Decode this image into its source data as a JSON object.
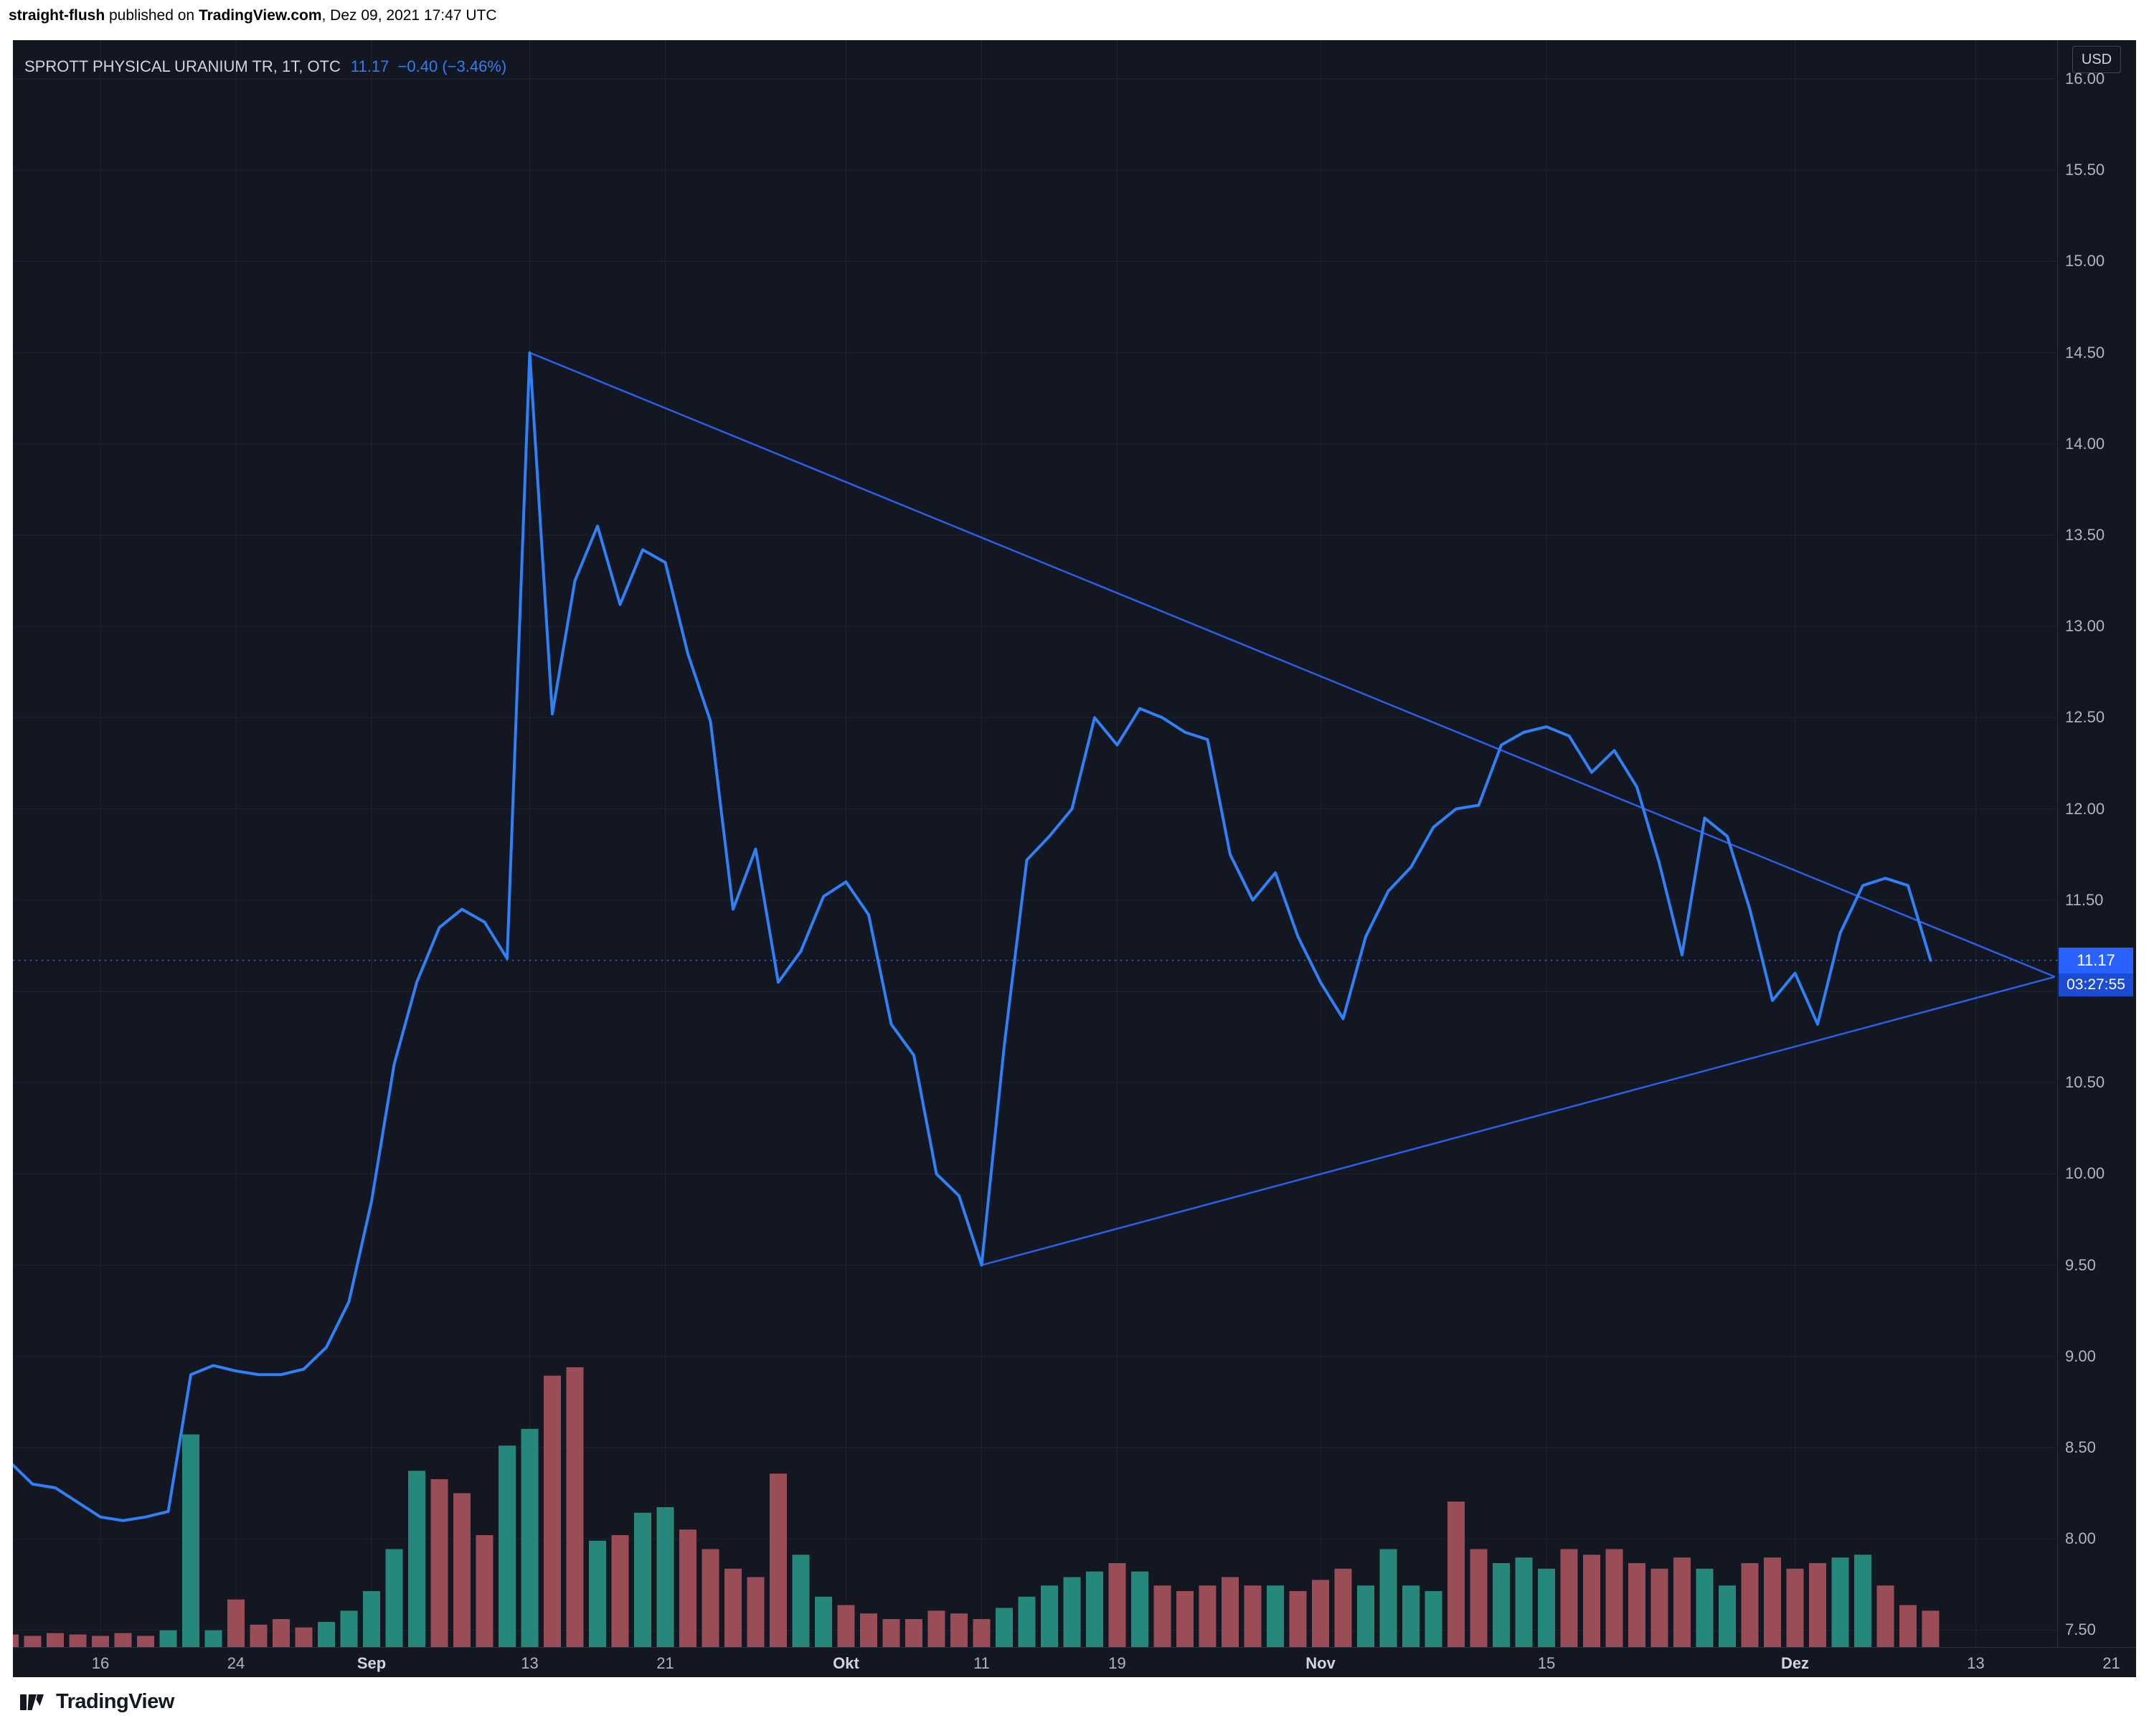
{
  "attribution": {
    "username": "straight-flush",
    "published": " published on ",
    "site": "TradingView.com",
    "datetime": ", Dez 09, 2021 17:47 UTC"
  },
  "footer": {
    "brand": "TradingView"
  },
  "chart": {
    "symbol_title": "SPROTT PHYSICAL URANIUM TR, 1T, OTC",
    "last_price": "11.17",
    "change": "−0.40",
    "change_pct": "(−3.46%)",
    "currency_button": "USD",
    "price_label": {
      "price": "11.17",
      "countdown": "03:27:55"
    }
  },
  "colors": {
    "background": "#131722",
    "grid": "#1e2330",
    "axis_text": "#b2b5be",
    "series": "#2f81f5",
    "trendline": "#2c5fe8",
    "volume_up": "#26877b",
    "volume_down": "#9b4d57",
    "flag_bg": "#2962ff",
    "flag_countdown_bg": "#1c4bd4",
    "accent_text": "#2f7ef2"
  },
  "chart_data": {
    "type": "line",
    "title": "SPROTT PHYSICAL URANIUM TR",
    "interval": "1T",
    "exchange": "OTC",
    "currency": "USD",
    "last": 11.17,
    "change": -0.4,
    "change_pct": -3.46,
    "current_price": 11.17,
    "countdown": "03:27:55",
    "grid": true,
    "ylim": [
      7.3,
      16.2
    ],
    "price_axis": {
      "ticks": [
        "16.00",
        "15.50",
        "15.00",
        "14.50",
        "14.00",
        "13.50",
        "13.00",
        "12.50",
        "12.00",
        "11.50",
        "11.00",
        "10.50",
        "10.00",
        "9.50",
        "9.00",
        "8.50",
        "8.00",
        "7.50"
      ]
    },
    "time_ticks": [
      {
        "label": "16",
        "index": 4,
        "major": false
      },
      {
        "label": "24",
        "index": 10,
        "major": false
      },
      {
        "label": "Sep",
        "index": 16,
        "major": true
      },
      {
        "label": "13",
        "index": 23,
        "major": false
      },
      {
        "label": "21",
        "index": 29,
        "major": false
      },
      {
        "label": "Okt",
        "index": 37,
        "major": true
      },
      {
        "label": "11",
        "index": 43,
        "major": false
      },
      {
        "label": "19",
        "index": 49,
        "major": false
      },
      {
        "label": "Nov",
        "index": 58,
        "major": true
      },
      {
        "label": "15",
        "index": 68,
        "major": false
      },
      {
        "label": "Dez",
        "index": 79,
        "major": true
      },
      {
        "label": "13",
        "index": 87,
        "major": false
      },
      {
        "label": "21",
        "index": 93,
        "major": false
      }
    ],
    "x_dates": [
      "2021-08-10",
      "2021-08-11",
      "2021-08-12",
      "2021-08-13",
      "2021-08-16",
      "2021-08-17",
      "2021-08-18",
      "2021-08-19",
      "2021-08-20",
      "2021-08-23",
      "2021-08-24",
      "2021-08-25",
      "2021-08-26",
      "2021-08-27",
      "2021-08-30",
      "2021-08-31",
      "2021-09-01",
      "2021-09-02",
      "2021-09-03",
      "2021-09-07",
      "2021-09-08",
      "2021-09-09",
      "2021-09-10",
      "2021-09-13",
      "2021-09-14",
      "2021-09-15",
      "2021-09-16",
      "2021-09-17",
      "2021-09-20",
      "2021-09-21",
      "2021-09-22",
      "2021-09-23",
      "2021-09-24",
      "2021-09-27",
      "2021-09-28",
      "2021-09-29",
      "2021-09-30",
      "2021-10-01",
      "2021-10-04",
      "2021-10-05",
      "2021-10-06",
      "2021-10-07",
      "2021-10-08",
      "2021-10-11",
      "2021-10-12",
      "2021-10-13",
      "2021-10-14",
      "2021-10-15",
      "2021-10-18",
      "2021-10-19",
      "2021-10-20",
      "2021-10-21",
      "2021-10-22",
      "2021-10-25",
      "2021-10-26",
      "2021-10-27",
      "2021-10-28",
      "2021-10-29",
      "2021-11-01",
      "2021-11-02",
      "2021-11-03",
      "2021-11-04",
      "2021-11-05",
      "2021-11-08",
      "2021-11-09",
      "2021-11-10",
      "2021-11-11",
      "2021-11-12",
      "2021-11-15",
      "2021-11-16",
      "2021-11-17",
      "2021-11-18",
      "2021-11-19",
      "2021-11-22",
      "2021-11-23",
      "2021-11-24",
      "2021-11-26",
      "2021-11-29",
      "2021-11-30",
      "2021-12-01",
      "2021-12-02",
      "2021-12-03",
      "2021-12-06",
      "2021-12-07",
      "2021-12-08",
      "2021-12-09"
    ],
    "close": [
      8.42,
      8.3,
      8.28,
      8.2,
      8.12,
      8.1,
      8.12,
      8.15,
      8.9,
      8.95,
      8.92,
      8.9,
      8.9,
      8.93,
      9.05,
      9.3,
      9.85,
      10.6,
      11.05,
      11.35,
      11.45,
      11.38,
      11.18,
      14.5,
      12.52,
      13.25,
      13.55,
      13.12,
      13.42,
      13.35,
      12.85,
      12.48,
      11.45,
      11.78,
      11.05,
      11.22,
      11.52,
      11.6,
      11.42,
      10.82,
      10.65,
      10.0,
      9.88,
      9.5,
      10.7,
      11.72,
      11.85,
      12.0,
      12.5,
      12.35,
      12.55,
      12.5,
      12.42,
      12.38,
      11.75,
      11.5,
      11.65,
      11.3,
      11.05,
      10.85,
      11.3,
      11.55,
      11.68,
      11.9,
      12.0,
      12.02,
      12.35,
      12.42,
      12.45,
      12.4,
      12.2,
      12.32,
      12.12,
      11.7,
      11.2,
      11.95,
      11.85,
      11.45,
      10.95,
      11.1,
      10.82,
      11.32,
      11.58,
      11.62,
      11.58,
      11.17
    ],
    "volume_rel": [
      0.045,
      0.04,
      0.05,
      0.045,
      0.04,
      0.05,
      0.04,
      0.06,
      0.76,
      0.06,
      0.17,
      0.08,
      0.1,
      0.07,
      0.09,
      0.13,
      0.2,
      0.35,
      0.63,
      0.6,
      0.55,
      0.4,
      0.72,
      0.78,
      0.97,
      1.0,
      0.38,
      0.4,
      0.48,
      0.5,
      0.42,
      0.35,
      0.28,
      0.25,
      0.62,
      0.33,
      0.18,
      0.15,
      0.12,
      0.1,
      0.1,
      0.13,
      0.12,
      0.1,
      0.14,
      0.18,
      0.22,
      0.25,
      0.27,
      0.3,
      0.27,
      0.22,
      0.2,
      0.22,
      0.25,
      0.22,
      0.22,
      0.2,
      0.24,
      0.28,
      0.22,
      0.35,
      0.22,
      0.2,
      0.52,
      0.35,
      0.3,
      0.32,
      0.28,
      0.35,
      0.33,
      0.35,
      0.3,
      0.28,
      0.32,
      0.28,
      0.22,
      0.3,
      0.32,
      0.28,
      0.3,
      0.32,
      0.33,
      0.22,
      0.15,
      0.13
    ],
    "volume_dir": [
      "d",
      "d",
      "d",
      "d",
      "d",
      "d",
      "d",
      "u",
      "u",
      "u",
      "d",
      "d",
      "d",
      "d",
      "u",
      "u",
      "u",
      "u",
      "u",
      "d",
      "d",
      "d",
      "u",
      "u",
      "d",
      "d",
      "u",
      "d",
      "u",
      "u",
      "d",
      "d",
      "d",
      "d",
      "d",
      "u",
      "u",
      "d",
      "d",
      "d",
      "d",
      "d",
      "d",
      "d",
      "u",
      "u",
      "u",
      "u",
      "u",
      "d",
      "u",
      "d",
      "d",
      "d",
      "d",
      "d",
      "u",
      "d",
      "d",
      "d",
      "u",
      "u",
      "u",
      "u",
      "d",
      "d",
      "u",
      "u",
      "u",
      "d",
      "d",
      "d",
      "d",
      "d",
      "d",
      "u",
      "u",
      "d",
      "d",
      "d",
      "d",
      "u",
      "u",
      "d",
      "d",
      "d"
    ],
    "trendlines": [
      {
        "x1_index": 23,
        "price1": 14.5,
        "x2_index": 90.5,
        "price2": 11.08
      },
      {
        "x1_index": 43,
        "price1": 9.5,
        "x2_index": 90.5,
        "price2": 11.08
      }
    ]
  }
}
